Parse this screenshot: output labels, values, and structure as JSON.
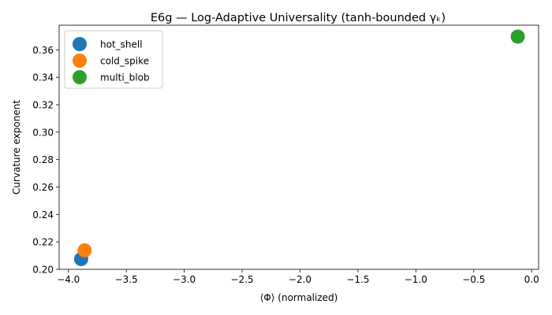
{
  "chart_data": {
    "type": "scatter",
    "title": "E6g — Log-Adaptive Universality (tanh-bounded γₖ)",
    "xlabel": "⟨Φ⟩ (normalized)",
    "ylabel": "Curvature exponent",
    "xlim": [
      -4.08,
      0.06
    ],
    "ylim": [
      0.2,
      0.378
    ],
    "xticks": [
      -4.0,
      -3.5,
      -3.0,
      -2.5,
      -2.0,
      -1.5,
      -1.0,
      -0.5,
      0.0
    ],
    "xtick_labels": [
      "−4.0",
      "−3.5",
      "−3.0",
      "−2.5",
      "−2.0",
      "−1.5",
      "−1.0",
      "−0.5",
      "0.0"
    ],
    "yticks": [
      0.2,
      0.22,
      0.24,
      0.26,
      0.28,
      0.3,
      0.32,
      0.34,
      0.36
    ],
    "ytick_labels": [
      "0.20",
      "0.22",
      "0.24",
      "0.26",
      "0.28",
      "0.30",
      "0.32",
      "0.34",
      "0.36"
    ],
    "grid": false,
    "legend_position": "top-left",
    "series": [
      {
        "name": "hot_shell",
        "color": "#1f77b4",
        "x": [
          -3.89
        ],
        "y": [
          0.2075
        ]
      },
      {
        "name": "cold_spike",
        "color": "#ff7f0e",
        "x": [
          -3.86
        ],
        "y": [
          0.2138
        ]
      },
      {
        "name": "multi_blob",
        "color": "#2ca02c",
        "x": [
          -0.12
        ],
        "y": [
          0.3697
        ]
      }
    ]
  }
}
